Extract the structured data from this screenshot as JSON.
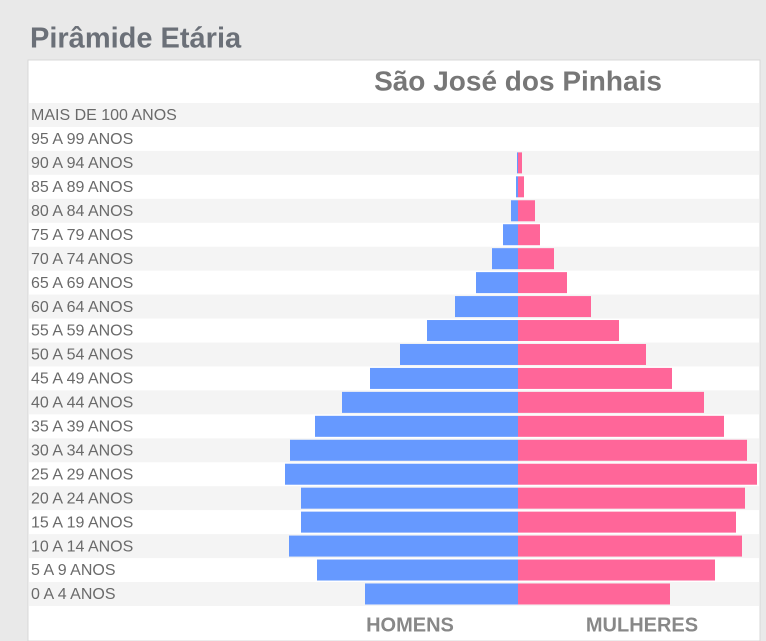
{
  "chart_data": {
    "type": "pyramid",
    "title": "Pirâmide Etária",
    "subtitle": "São José dos Pinhais",
    "categories": [
      "MAIS DE 100 ANOS",
      "95 A 99 ANOS",
      "90 A 94 ANOS",
      "85 A 89 ANOS",
      "80 A 84 ANOS",
      "75 A 79 ANOS",
      "70 A 74 ANOS",
      "65 A 69 ANOS",
      "60 A 64 ANOS",
      "55 A 59 ANOS",
      "50 A 54 ANOS",
      "45 A 49 ANOS",
      "40 A 44 ANOS",
      "35 A 39 ANOS",
      "30 A 34 ANOS",
      "25 A 29 ANOS",
      "20 A 24 ANOS",
      "15 A 19 ANOS",
      "10 A 14 ANOS",
      "5 A 9 ANOS",
      "0 A 4 ANOS"
    ],
    "series": [
      {
        "name": "HOMENS",
        "color": "#6699ff",
        "values": [
          0,
          0,
          1,
          2,
          7,
          15,
          26,
          42,
          63,
          91,
          118,
          148,
          176,
          203,
          228,
          233,
          217,
          217,
          229,
          201,
          153
        ]
      },
      {
        "name": "MULHERES",
        "color": "#ff6699",
        "values": [
          0,
          0,
          4,
          6,
          17,
          22,
          36,
          49,
          73,
          101,
          128,
          154,
          186,
          206,
          229,
          239,
          227,
          218,
          224,
          197,
          152
        ]
      }
    ],
    "xlim": [
      0,
      250
    ]
  }
}
